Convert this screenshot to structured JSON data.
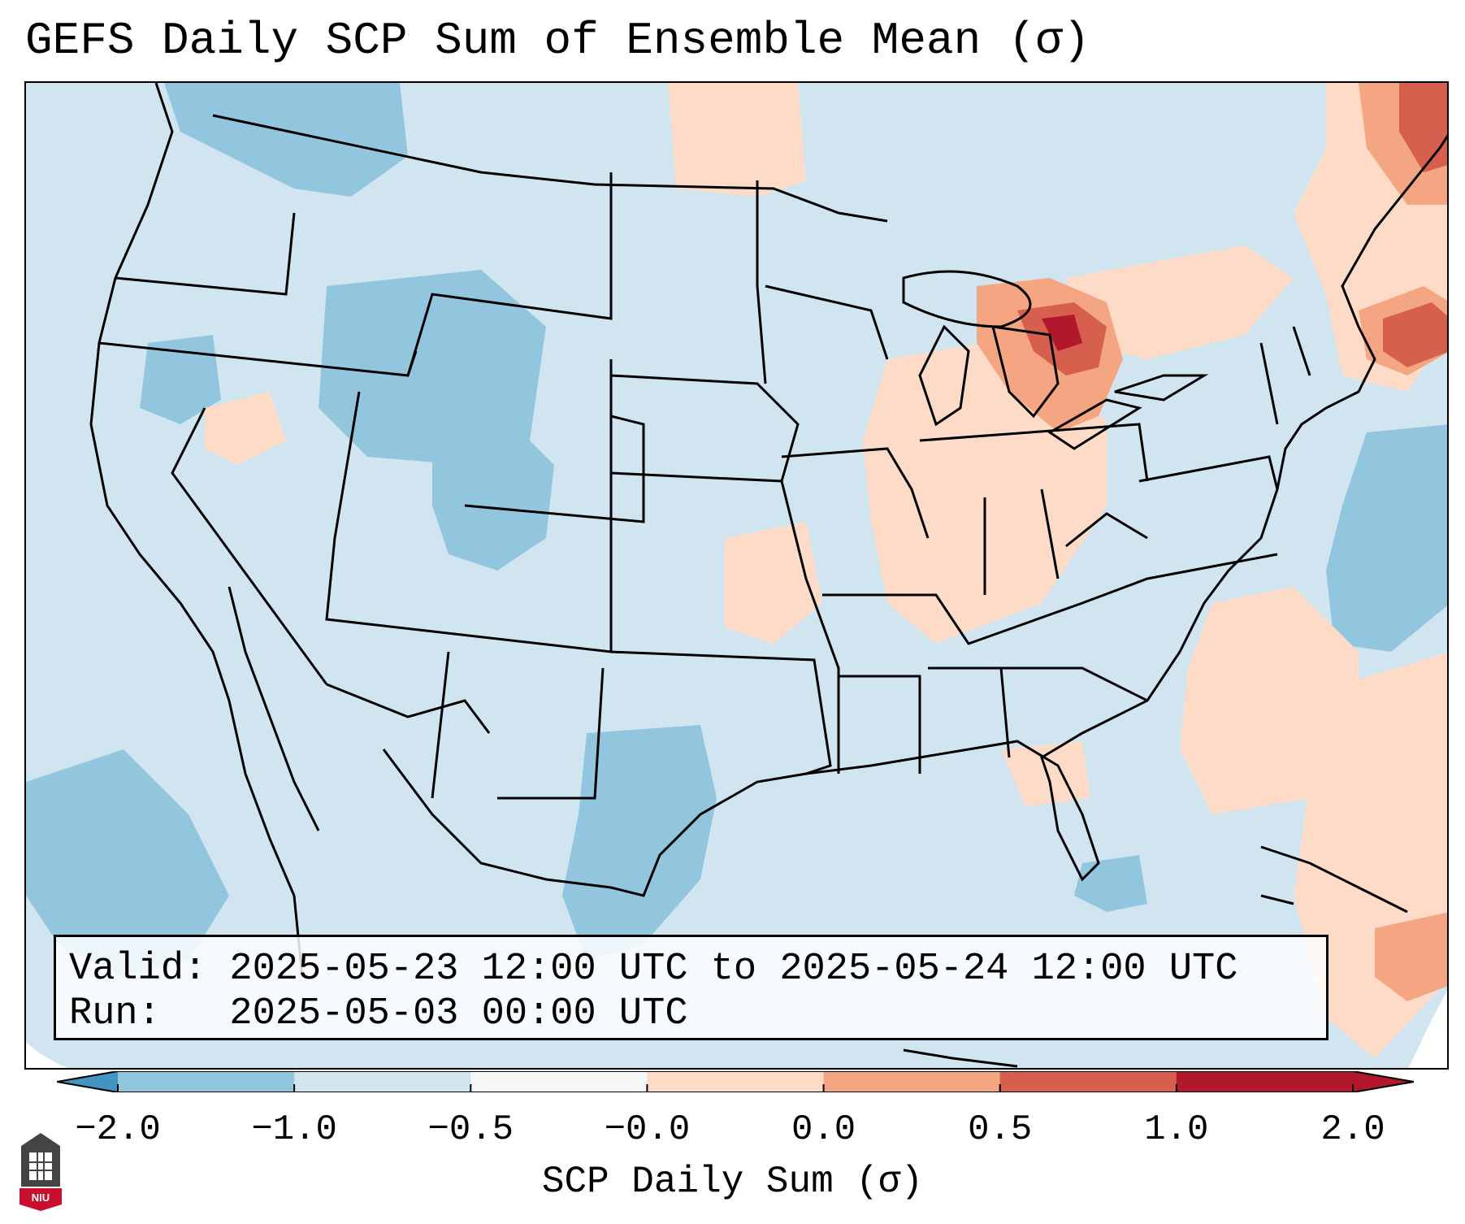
{
  "title": "GEFS Daily SCP Sum of Ensemble Mean (σ)",
  "info": {
    "valid_line": "Valid: 2025-05-23 12:00 UTC to 2025-05-24 12:00 UTC",
    "run_line": "Run:   2025-05-03 00:00 UTC"
  },
  "colorbar": {
    "label": "SCP Daily Sum (σ)",
    "ticks": [
      "−2.0",
      "−1.0",
      "−0.5",
      "−0.0",
      "0.0",
      "0.5",
      "1.0",
      "2.0"
    ],
    "colors": [
      "#4393c3",
      "#92c5de",
      "#d1e5f0",
      "#f7f7f7",
      "#fddbc7",
      "#f4a582",
      "#d6604d",
      "#b2182b"
    ],
    "extend": "both"
  },
  "logo": {
    "text": "NIU",
    "colors": {
      "tower": "#444444",
      "banner": "#c8102e"
    }
  },
  "map": {
    "background_color": "#d1e5f0",
    "anomaly_regions": [
      {
        "area": "Great Lakes",
        "level": "strong positive"
      },
      {
        "area": "Northern New England",
        "level": "strong positive"
      },
      {
        "area": "Midwest and Ohio Valley",
        "level": "weak positive"
      },
      {
        "area": "Western Atlantic",
        "level": "moderate negative"
      },
      {
        "area": "Northern Rockies and Wyoming",
        "level": "moderate negative"
      },
      {
        "area": "South Texas and Mexico",
        "level": "moderate negative"
      }
    ]
  }
}
